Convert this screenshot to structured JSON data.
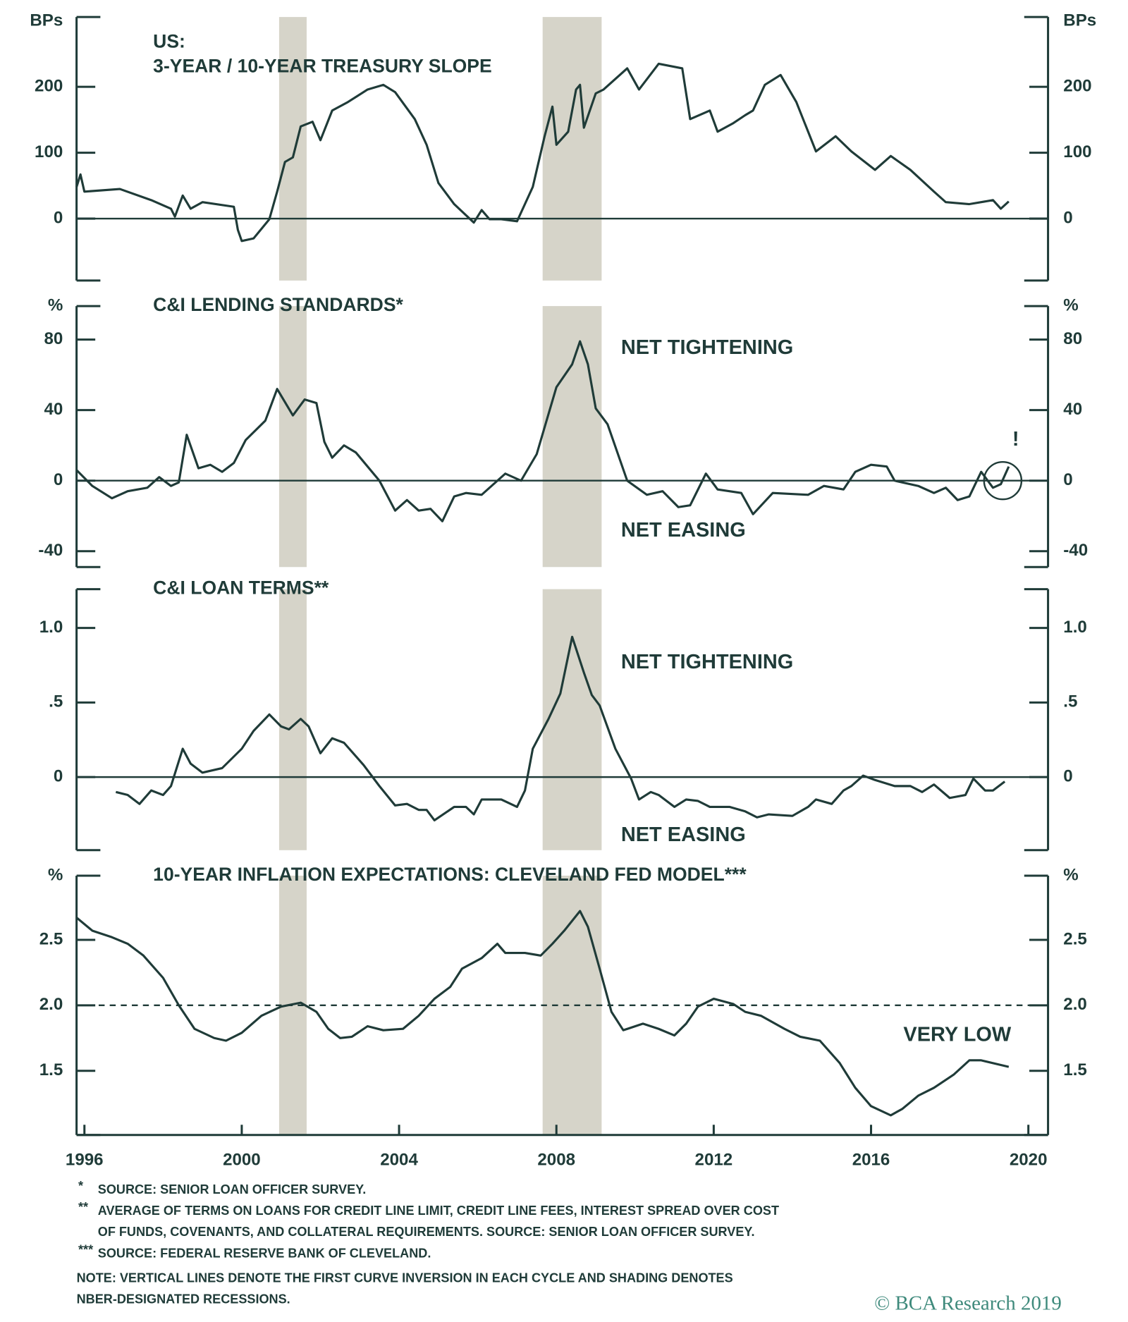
{
  "recessions": [
    [
      2000.95,
      2001.65
    ],
    [
      2007.65,
      2009.15
    ]
  ],
  "chart_data": [
    {
      "type": "line",
      "title": [
        "US:",
        "3-YEAR / 10-YEAR TREASURY SLOPE"
      ],
      "y_unit": "BPs",
      "color": "#1f3b38",
      "x": [
        1995.8,
        1995.9,
        1996.0,
        1996.9,
        1997.7,
        1998.2,
        1998.3,
        1998.5,
        1998.7,
        1999.0,
        1999.8,
        1999.9,
        2000.0,
        2000.3,
        2000.7,
        2000.9,
        2001.1,
        2001.3,
        2001.5,
        2001.8,
        2002.0,
        2002.3,
        2002.7,
        2003.2,
        2003.6,
        2003.9,
        2004.4,
        2004.7,
        2005.0,
        2005.4,
        2005.9,
        2006.1,
        2006.3,
        2006.6,
        2007.0,
        2007.4,
        2007.7,
        2007.9,
        2008.0,
        2008.3,
        2008.5,
        2008.6,
        2008.7,
        2009.0,
        2009.2,
        2009.8,
        2010.1,
        2010.6,
        2011.2,
        2011.4,
        2011.9,
        2012.1,
        2012.5,
        2012.8,
        2013.0,
        2013.3,
        2013.7,
        2014.1,
        2014.6,
        2015.1,
        2015.5,
        2016.1,
        2016.5,
        2017.0,
        2017.6,
        2017.9,
        2018.5,
        2019.1,
        2019.3,
        2019.5
      ],
      "values": [
        48,
        67,
        41,
        45,
        28,
        15,
        3,
        35,
        15,
        25,
        18,
        -17,
        -34,
        -30,
        -1,
        41,
        86,
        93,
        140,
        147,
        119,
        164,
        177,
        196,
        203,
        192,
        151,
        112,
        54,
        22,
        -6,
        13,
        -1,
        -1,
        -4,
        48,
        125,
        170,
        112,
        132,
        196,
        203,
        138,
        190,
        196,
        228,
        196,
        235,
        228,
        151,
        164,
        132,
        145,
        157,
        164,
        203,
        218,
        177,
        102,
        125,
        102,
        74,
        95,
        74,
        41,
        25,
        22,
        28,
        15,
        26
      ],
      "xlim": [
        1995.8,
        2020.5
      ],
      "ylim": [
        -94,
        306
      ],
      "yticks": [
        0,
        100,
        200
      ],
      "ref_line": 0
    },
    {
      "type": "line",
      "title": "C&I LENDING STANDARDS*",
      "y_unit": "%",
      "color": "#1f3b38",
      "annotations": [
        "NET TIGHTENING",
        "NET EASING",
        "!"
      ],
      "x": [
        1995.8,
        1996.2,
        1996.7,
        1997.1,
        1997.6,
        1997.9,
        1998.2,
        1998.4,
        1998.6,
        1998.9,
        1999.2,
        1999.5,
        1999.8,
        2000.1,
        2000.6,
        2000.9,
        2001.3,
        2001.6,
        2001.9,
        2002.1,
        2002.3,
        2002.6,
        2002.9,
        2003.5,
        2003.9,
        2004.2,
        2004.5,
        2004.8,
        2005.1,
        2005.4,
        2005.7,
        2006.1,
        2006.7,
        2007.1,
        2007.5,
        2008.0,
        2008.4,
        2008.6,
        2008.8,
        2009.0,
        2009.3,
        2009.8,
        2010.3,
        2010.7,
        2011.1,
        2011.4,
        2011.8,
        2012.1,
        2012.7,
        2013.0,
        2013.5,
        2014.4,
        2014.8,
        2015.3,
        2015.6,
        2016.0,
        2016.4,
        2016.6,
        2017.2,
        2017.6,
        2017.9,
        2018.2,
        2018.5,
        2018.8,
        2019.1,
        2019.3,
        2019.5
      ],
      "values": [
        6,
        -3,
        -10,
        -6,
        -4,
        2,
        -3,
        -1,
        26,
        7,
        9,
        5,
        10,
        23,
        34,
        52,
        37,
        46,
        44,
        22,
        13,
        20,
        16,
        0,
        -17,
        -11,
        -17,
        -16,
        -23,
        -9,
        -7,
        -8,
        4,
        0,
        15,
        53,
        66,
        79,
        66,
        41,
        32,
        0,
        -8,
        -6,
        -15,
        -14,
        4,
        -5,
        -7,
        -19,
        -7,
        -8,
        -3,
        -5,
        5,
        9,
        8,
        0,
        -3,
        -7,
        -4,
        -11,
        -9,
        5,
        -4,
        -2,
        8
      ],
      "xlim": [
        1995.8,
        2020.5
      ],
      "ylim": [
        -49,
        99
      ],
      "yticks": [
        -40,
        0,
        40,
        80
      ],
      "ref_line": 0
    },
    {
      "type": "line",
      "title": "C&I LOAN TERMS**",
      "color": "#1f3b38",
      "annotations": [
        "NET TIGHTENING",
        "NET EASING"
      ],
      "x": [
        1996.8,
        1997.1,
        1997.4,
        1997.7,
        1998.0,
        1998.2,
        1998.5,
        1998.7,
        1999.0,
        1999.5,
        2000.0,
        2000.3,
        2000.7,
        2001.0,
        2001.2,
        2001.5,
        2001.7,
        2002.0,
        2002.3,
        2002.6,
        2003.1,
        2003.5,
        2003.9,
        2004.2,
        2004.5,
        2004.7,
        2004.9,
        2005.4,
        2005.7,
        2005.9,
        2006.1,
        2006.6,
        2007.0,
        2007.2,
        2007.4,
        2007.8,
        2008.1,
        2008.4,
        2008.7,
        2008.9,
        2009.1,
        2009.5,
        2009.9,
        2010.1,
        2010.4,
        2010.6,
        2011.0,
        2011.3,
        2011.6,
        2011.9,
        2012.4,
        2012.8,
        2013.1,
        2013.4,
        2014.0,
        2014.4,
        2014.6,
        2015.0,
        2015.3,
        2015.5,
        2015.8,
        2016.1,
        2016.6,
        2017.0,
        2017.3,
        2017.6,
        2018.0,
        2018.4,
        2018.6,
        2018.9,
        2019.1,
        2019.4
      ],
      "values": [
        -0.1,
        -0.12,
        -0.18,
        -0.09,
        -0.12,
        -0.06,
        0.19,
        0.09,
        0.03,
        0.06,
        0.19,
        0.31,
        0.42,
        0.34,
        0.32,
        0.39,
        0.34,
        0.16,
        0.26,
        0.23,
        0.08,
        -0.06,
        -0.19,
        -0.18,
        -0.22,
        -0.22,
        -0.29,
        -0.2,
        -0.2,
        -0.25,
        -0.15,
        -0.15,
        -0.2,
        -0.09,
        0.19,
        0.39,
        0.56,
        0.94,
        0.7,
        0.55,
        0.48,
        0.19,
        -0.01,
        -0.15,
        -0.1,
        -0.12,
        -0.2,
        -0.15,
        -0.16,
        -0.2,
        -0.2,
        -0.23,
        -0.27,
        -0.25,
        -0.26,
        -0.2,
        -0.15,
        -0.18,
        -0.09,
        -0.06,
        0.01,
        -0.02,
        -0.06,
        -0.06,
        -0.1,
        -0.05,
        -0.14,
        -0.12,
        -0.01,
        -0.09,
        -0.09,
        -0.03
      ],
      "xlim": [
        1995.8,
        2020.5
      ],
      "ylim": [
        -0.49,
        1.26
      ],
      "yticks": [
        0,
        {
          "value": 0.5,
          "label": ".5"
        },
        {
          "value": 1,
          "label": "1.0"
        }
      ],
      "ref_line": 0
    },
    {
      "type": "line",
      "title": "10-YEAR INFLATION EXPECTATIONS: CLEVELAND FED MODEL***",
      "y_unit": "%",
      "color": "#1f3b38",
      "annotations": [
        "VERY LOW"
      ],
      "x": [
        1995.8,
        1996.2,
        1996.7,
        1997.1,
        1997.5,
        1998.0,
        1998.4,
        1998.8,
        1999.3,
        1999.6,
        2000.0,
        2000.5,
        2001.0,
        2001.5,
        2001.9,
        2002.2,
        2002.5,
        2002.8,
        2003.2,
        2003.6,
        2004.1,
        2004.5,
        2004.9,
        2005.3,
        2005.6,
        2006.1,
        2006.5,
        2006.7,
        2007.2,
        2007.6,
        2007.9,
        2008.2,
        2008.6,
        2008.8,
        2009.1,
        2009.4,
        2009.7,
        2010.2,
        2010.6,
        2011.0,
        2011.3,
        2011.6,
        2012.0,
        2012.5,
        2012.8,
        2013.2,
        2013.8,
        2014.2,
        2014.7,
        2015.2,
        2015.6,
        2016.0,
        2016.5,
        2016.8,
        2017.2,
        2017.6,
        2018.1,
        2018.5,
        2018.8,
        2019.5
      ],
      "values": [
        2.67,
        2.57,
        2.52,
        2.47,
        2.38,
        2.21,
        2.0,
        1.82,
        1.75,
        1.73,
        1.79,
        1.92,
        1.99,
        2.02,
        1.95,
        1.82,
        1.75,
        1.76,
        1.84,
        1.81,
        1.82,
        1.92,
        2.05,
        2.14,
        2.28,
        2.36,
        2.47,
        2.4,
        2.4,
        2.38,
        2.47,
        2.57,
        2.72,
        2.6,
        2.28,
        1.95,
        1.81,
        1.86,
        1.82,
        1.77,
        1.86,
        1.99,
        2.05,
        2.01,
        1.95,
        1.92,
        1.82,
        1.76,
        1.73,
        1.56,
        1.37,
        1.23,
        1.16,
        1.21,
        1.31,
        1.37,
        1.47,
        1.58,
        1.58,
        1.53
      ],
      "xlim": [
        1995.8,
        2020.5
      ],
      "ylim": [
        1.01,
        2.99
      ],
      "yticks": [
        1.5,
        {
          "value": 2,
          "label": "2.0"
        },
        2.5
      ],
      "ref_line": 2,
      "ref_dashed": true,
      "xticks": [
        1996,
        2000,
        2004,
        2008,
        2012,
        2016,
        2020
      ]
    }
  ],
  "notes": [
    {
      "marker": "*",
      "lines": [
        "SOURCE: SENIOR LOAN OFFICER SURVEY."
      ]
    },
    {
      "marker": "**",
      "lines": [
        "AVERAGE OF TERMS ON LOANS FOR CREDIT LINE LIMIT, CREDIT LINE FEES, INTEREST SPREAD OVER COST",
        "OF FUNDS, COVENANTS, AND COLLATERAL REQUIREMENTS. SOURCE: SENIOR LOAN OFFICER SURVEY."
      ]
    },
    {
      "marker": "***",
      "lines": [
        "SOURCE: FEDERAL RESERVE BANK OF CLEVELAND."
      ]
    }
  ],
  "note": [
    "NOTE: VERTICAL LINES DENOTE THE FIRST CURVE INVERSION IN EACH CYCLE AND SHADING DENOTES",
    "NBER-DESIGNATED RECESSIONS."
  ],
  "credit": "© BCA Research 2019"
}
